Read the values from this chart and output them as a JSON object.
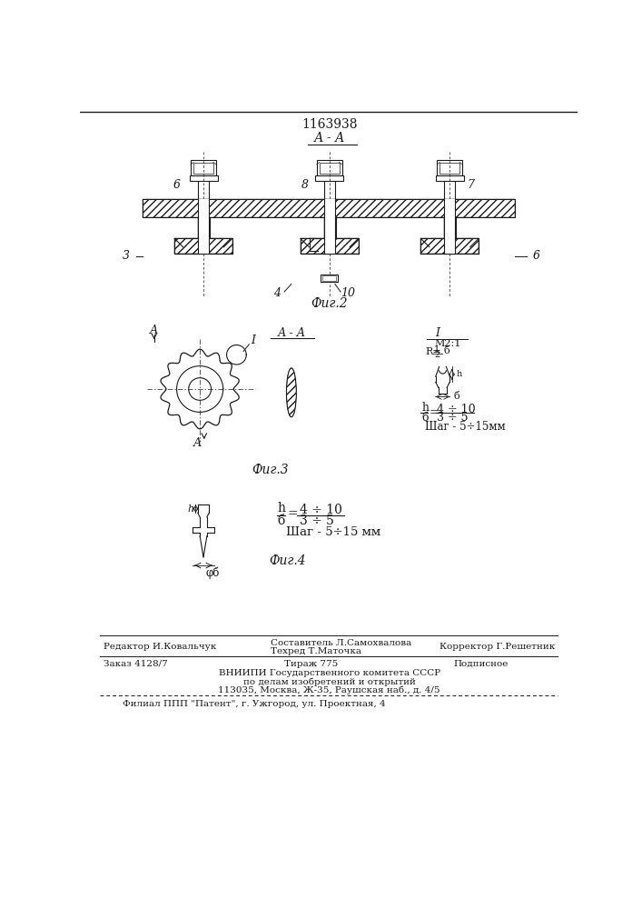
{
  "patent_number": "1163938",
  "fig2_label": "Фиг.2",
  "fig3_label": "Фиг.3",
  "fig4_label": "Фиг.4",
  "bg_color": "#ffffff",
  "line_color": "#1a1a1a",
  "footer_editor": "Редактор И.Ковальчук",
  "footer_composer": "Составитель Л.Самохвалова",
  "footer_techred": "Техред Т.Маточка",
  "footer_corrector": "Корректор Г.Решетник",
  "footer_order": "Заказ 4128/7",
  "footer_tirazh": "Тираж 775",
  "footer_podpisnoe": "Подписное",
  "footer_vniiipi1": "ВНИИПИ Государственного комитета СССР",
  "footer_vniiipi2": "по делам изобретений и открытий",
  "footer_vniiipi3": "113035, Москва, Ж-35, Раушская наб., д. 4/5",
  "footer_filial": "Филиал ППП \"Патент\", г. Ужгород, ул. Проектная, 4"
}
